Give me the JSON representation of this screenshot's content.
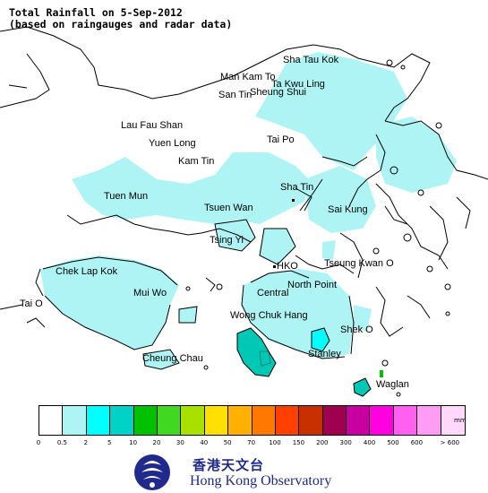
{
  "title": {
    "line1": "Total Rainfall on 5-Sep-2012",
    "line2": "(based on raingauges and radar data)"
  },
  "places": [
    "Sha Tau Kok",
    "Man Kam To",
    "Ta Kwu Ling",
    "San Tin",
    "Sheung Shui",
    "Lau Fau Shan",
    "Yuen Long",
    "Tai Po",
    "Kam Tin",
    "Tuen Mun",
    "Sha Tin",
    "Tsuen Wan",
    "Sai Kung",
    "Tsing Yi",
    "Chek Lap Kok",
    "HKO",
    "Tseung Kwan O",
    "North Point",
    "Mui Wo",
    "Central",
    "Tai O",
    "Wong Chuk Hang",
    "Shek O",
    "Stanley",
    "Cheung Chau",
    "Waglan"
  ],
  "legend": {
    "unit": "mm",
    "colors": [
      "#ffffff",
      "#aef4f4",
      "#00ffff",
      "#00d2c8",
      "#00c000",
      "#40d820",
      "#a8e000",
      "#ffe000",
      "#ffb000",
      "#ff7800",
      "#ff4000",
      "#c83000",
      "#a00050",
      "#c800a0",
      "#ff00e0",
      "#ff60f0",
      "#ff9cf4",
      "#ffd8fc"
    ],
    "ticks": [
      "0",
      "0.5",
      "2",
      "5",
      "10",
      "20",
      "30",
      "40",
      "50",
      "70",
      "100",
      "150",
      "200",
      "300",
      "400",
      "500",
      "600",
      "> 600"
    ]
  },
  "logo": {
    "chinese": "香港天文台",
    "english": "Hong Kong Observatory"
  },
  "colors": {
    "light_cyan": "#aef4f4",
    "teal": "#00c8b4",
    "deep_teal": "#00b0a0"
  }
}
